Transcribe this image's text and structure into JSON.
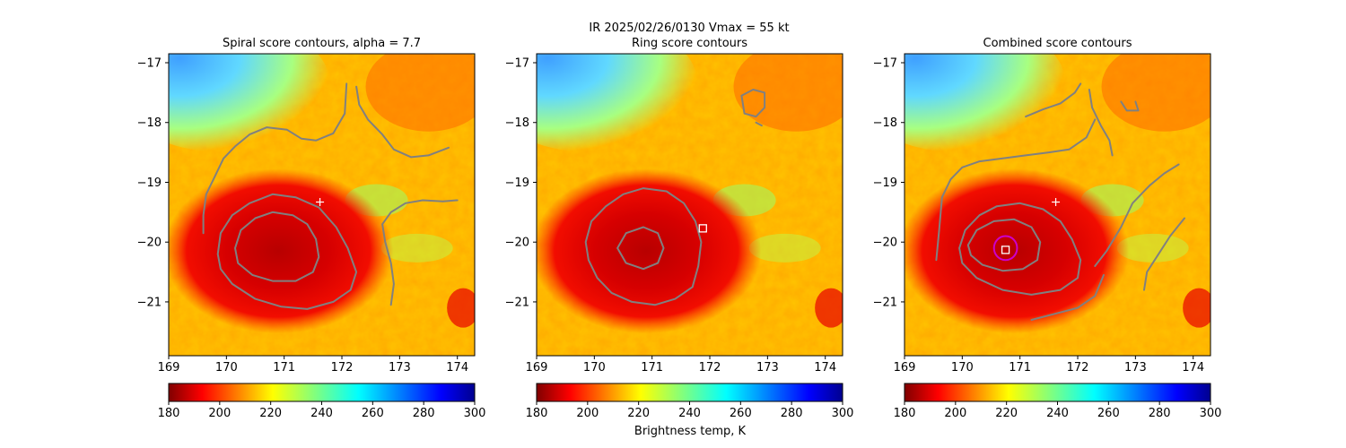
{
  "figure": {
    "suptitle_line1": "IR  2025/02/26/0130    Vmax = 55 kt",
    "colorbar_label": "Brightness temp, K"
  },
  "colors": {
    "contour": "#808080",
    "marker": "#ffffff",
    "ring": "#cc00cc"
  },
  "chart_data": [
    {
      "type": "heatmap",
      "title": "Spiral score contours, alpha =  7.7",
      "xlim": [
        169,
        174.3
      ],
      "ylim": [
        -21.9,
        -16.85
      ],
      "xticks": [
        "169",
        "170",
        "171",
        "172",
        "173",
        "174"
      ],
      "yticks": [
        "-17",
        "-18",
        "-19",
        "-20",
        "-21"
      ],
      "colorbar": {
        "cmap": "jet_r",
        "range": [
          180,
          300
        ],
        "ticks": [
          "180",
          "200",
          "220",
          "240",
          "260",
          "280",
          "300"
        ]
      },
      "markers": [
        {
          "kind": "plus",
          "x": 171.62,
          "y": -19.33
        }
      ],
      "contours": [
        [
          [
            169.6,
            -19.85
          ],
          [
            169.6,
            -19.55
          ],
          [
            169.65,
            -19.2
          ],
          [
            169.8,
            -18.9
          ],
          [
            169.95,
            -18.6
          ],
          [
            170.15,
            -18.4
          ],
          [
            170.4,
            -18.2
          ],
          [
            170.7,
            -18.08
          ],
          [
            171.05,
            -18.12
          ],
          [
            171.3,
            -18.27
          ],
          [
            171.55,
            -18.3
          ],
          [
            171.85,
            -18.18
          ],
          [
            172.05,
            -17.85
          ],
          [
            172.08,
            -17.35
          ]
        ],
        [
          [
            172.25,
            -17.4
          ],
          [
            172.3,
            -17.7
          ],
          [
            172.45,
            -17.95
          ],
          [
            172.7,
            -18.2
          ],
          [
            172.9,
            -18.45
          ],
          [
            173.2,
            -18.58
          ],
          [
            173.5,
            -18.55
          ],
          [
            173.85,
            -18.42
          ]
        ],
        [
          [
            172.85,
            -21.05
          ],
          [
            172.9,
            -20.7
          ],
          [
            172.85,
            -20.35
          ],
          [
            172.75,
            -20.0
          ],
          [
            172.7,
            -19.7
          ],
          [
            172.85,
            -19.5
          ],
          [
            173.1,
            -19.35
          ],
          [
            173.4,
            -19.3
          ],
          [
            173.75,
            -19.32
          ],
          [
            174.0,
            -19.3
          ]
        ],
        [
          [
            169.85,
            -20.2
          ],
          [
            169.9,
            -19.85
          ],
          [
            170.1,
            -19.55
          ],
          [
            170.4,
            -19.35
          ],
          [
            170.8,
            -19.2
          ],
          [
            171.2,
            -19.25
          ],
          [
            171.6,
            -19.42
          ],
          [
            171.9,
            -19.75
          ],
          [
            172.1,
            -20.1
          ],
          [
            172.25,
            -20.5
          ],
          [
            172.15,
            -20.8
          ],
          [
            171.85,
            -21.0
          ],
          [
            171.4,
            -21.12
          ],
          [
            170.95,
            -21.08
          ],
          [
            170.5,
            -20.95
          ],
          [
            170.1,
            -20.7
          ],
          [
            169.9,
            -20.45
          ],
          [
            169.85,
            -20.2
          ]
        ],
        [
          [
            170.15,
            -20.1
          ],
          [
            170.25,
            -19.8
          ],
          [
            170.5,
            -19.6
          ],
          [
            170.8,
            -19.5
          ],
          [
            171.15,
            -19.55
          ],
          [
            171.4,
            -19.7
          ],
          [
            171.55,
            -19.95
          ],
          [
            171.6,
            -20.25
          ],
          [
            171.5,
            -20.5
          ],
          [
            171.2,
            -20.65
          ],
          [
            170.8,
            -20.65
          ],
          [
            170.45,
            -20.55
          ],
          [
            170.2,
            -20.35
          ],
          [
            170.15,
            -20.1
          ]
        ]
      ]
    },
    {
      "type": "heatmap",
      "title": "Ring score contours",
      "xlim": [
        169,
        174.3
      ],
      "ylim": [
        -21.9,
        -16.85
      ],
      "xticks": [
        "169",
        "170",
        "171",
        "172",
        "173",
        "174"
      ],
      "yticks": [
        "-17",
        "-18",
        "-19",
        "-20",
        "-21"
      ],
      "colorbar": {
        "cmap": "jet_r",
        "range": [
          180,
          300
        ],
        "ticks": [
          "180",
          "200",
          "220",
          "240",
          "260",
          "280",
          "300"
        ]
      },
      "markers": [
        {
          "kind": "square",
          "x": 171.88,
          "y": -19.77
        }
      ],
      "contours": [
        [
          [
            169.85,
            -20.0
          ],
          [
            169.95,
            -19.65
          ],
          [
            170.2,
            -19.4
          ],
          [
            170.5,
            -19.2
          ],
          [
            170.85,
            -19.1
          ],
          [
            171.25,
            -19.15
          ],
          [
            171.55,
            -19.35
          ],
          [
            171.75,
            -19.65
          ],
          [
            171.85,
            -20.0
          ],
          [
            171.8,
            -20.4
          ],
          [
            171.7,
            -20.75
          ],
          [
            171.4,
            -20.95
          ],
          [
            171.05,
            -21.05
          ],
          [
            170.65,
            -21.0
          ],
          [
            170.3,
            -20.85
          ],
          [
            170.05,
            -20.6
          ],
          [
            169.9,
            -20.3
          ],
          [
            169.85,
            -20.0
          ]
        ],
        [
          [
            170.4,
            -20.1
          ],
          [
            170.55,
            -19.85
          ],
          [
            170.85,
            -19.75
          ],
          [
            171.1,
            -19.85
          ],
          [
            171.2,
            -20.1
          ],
          [
            171.1,
            -20.35
          ],
          [
            170.85,
            -20.45
          ],
          [
            170.55,
            -20.35
          ],
          [
            170.4,
            -20.1
          ]
        ],
        [
          [
            172.55,
            -17.55
          ],
          [
            172.75,
            -17.45
          ],
          [
            172.95,
            -17.5
          ],
          [
            172.95,
            -17.75
          ],
          [
            172.8,
            -17.9
          ],
          [
            172.6,
            -17.85
          ],
          [
            172.55,
            -17.55
          ]
        ],
        [
          [
            172.8,
            -18.0
          ],
          [
            172.9,
            -18.05
          ]
        ]
      ]
    },
    {
      "type": "heatmap",
      "title": "Combined score contours",
      "xlim": [
        169,
        174.3
      ],
      "ylim": [
        -21.9,
        -16.85
      ],
      "xticks": [
        "169",
        "170",
        "171",
        "172",
        "173",
        "174"
      ],
      "yticks": [
        "-17",
        "-18",
        "-19",
        "-20",
        "-21"
      ],
      "colorbar": {
        "cmap": "jet_r",
        "range": [
          180,
          300
        ],
        "ticks": [
          "180",
          "200",
          "220",
          "240",
          "260",
          "280",
          "300"
        ]
      },
      "markers": [
        {
          "kind": "plus",
          "x": 171.62,
          "y": -19.33
        },
        {
          "kind": "square",
          "x": 170.75,
          "y": -20.13
        }
      ],
      "rings": [
        {
          "x": 170.75,
          "y": -20.1,
          "r": 0.2
        }
      ],
      "contours": [
        [
          [
            171.1,
            -17.9
          ],
          [
            171.4,
            -17.78
          ],
          [
            171.7,
            -17.68
          ],
          [
            171.95,
            -17.5
          ],
          [
            172.05,
            -17.35
          ]
        ],
        [
          [
            172.2,
            -17.45
          ],
          [
            172.25,
            -17.75
          ],
          [
            172.4,
            -18.05
          ],
          [
            172.55,
            -18.3
          ],
          [
            172.6,
            -18.55
          ]
        ],
        [
          [
            172.75,
            -17.65
          ],
          [
            172.85,
            -17.8
          ],
          [
            173.05,
            -17.8
          ],
          [
            173.0,
            -17.65
          ]
        ],
        [
          [
            169.55,
            -20.3
          ],
          [
            169.6,
            -19.8
          ],
          [
            169.65,
            -19.25
          ],
          [
            169.8,
            -18.95
          ],
          [
            170.0,
            -18.75
          ],
          [
            170.3,
            -18.65
          ],
          [
            170.7,
            -18.6
          ],
          [
            171.1,
            -18.55
          ],
          [
            171.5,
            -18.5
          ],
          [
            171.85,
            -18.45
          ],
          [
            172.15,
            -18.25
          ],
          [
            172.3,
            -17.95
          ]
        ],
        [
          [
            172.3,
            -20.4
          ],
          [
            172.5,
            -20.15
          ],
          [
            172.75,
            -19.75
          ],
          [
            172.95,
            -19.35
          ],
          [
            173.25,
            -19.05
          ],
          [
            173.5,
            -18.85
          ],
          [
            173.75,
            -18.7
          ]
        ],
        [
          [
            173.15,
            -20.8
          ],
          [
            173.2,
            -20.5
          ],
          [
            173.4,
            -20.2
          ],
          [
            173.6,
            -19.9
          ],
          [
            173.85,
            -19.6
          ]
        ],
        [
          [
            171.2,
            -21.3
          ],
          [
            171.6,
            -21.2
          ],
          [
            172.0,
            -21.1
          ],
          [
            172.3,
            -20.9
          ],
          [
            172.45,
            -20.55
          ]
        ],
        [
          [
            169.95,
            -20.1
          ],
          [
            170.05,
            -19.8
          ],
          [
            170.3,
            -19.55
          ],
          [
            170.6,
            -19.4
          ],
          [
            171.0,
            -19.35
          ],
          [
            171.4,
            -19.45
          ],
          [
            171.7,
            -19.65
          ],
          [
            171.9,
            -19.95
          ],
          [
            172.05,
            -20.3
          ],
          [
            172.0,
            -20.6
          ],
          [
            171.7,
            -20.8
          ],
          [
            171.2,
            -20.88
          ],
          [
            170.7,
            -20.8
          ],
          [
            170.25,
            -20.6
          ],
          [
            170.0,
            -20.35
          ],
          [
            169.95,
            -20.1
          ]
        ],
        [
          [
            170.1,
            -20.05
          ],
          [
            170.25,
            -19.8
          ],
          [
            170.55,
            -19.65
          ],
          [
            170.9,
            -19.62
          ],
          [
            171.2,
            -19.75
          ],
          [
            171.35,
            -20.0
          ],
          [
            171.3,
            -20.3
          ],
          [
            171.05,
            -20.45
          ],
          [
            170.7,
            -20.48
          ],
          [
            170.35,
            -20.38
          ],
          [
            170.15,
            -20.22
          ],
          [
            170.1,
            -20.05
          ]
        ]
      ]
    }
  ]
}
